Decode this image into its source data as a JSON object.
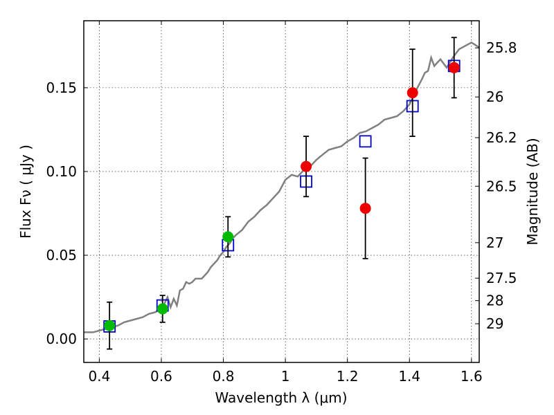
{
  "chart_data": {
    "type": "scatter",
    "xlabel": "Wavelength  λ (μm)",
    "ylabel": "Flux  Fν  ( μJy )",
    "y2label": "Magnitude (AB)",
    "xlim": [
      0.35,
      1.625
    ],
    "ylim": [
      -0.014,
      0.19
    ],
    "grid": true,
    "x_ticks": [
      0.4,
      0.6,
      0.8,
      1.0,
      1.2,
      1.4,
      1.6
    ],
    "x_tick_labels": [
      "0.4",
      "0.6",
      "0.8",
      "1",
      "1.2",
      "1.4",
      "1.6"
    ],
    "y_ticks": [
      0.0,
      0.05,
      0.1,
      0.15
    ],
    "y_tick_labels": [
      "0.00",
      "0.05",
      "0.10",
      "0.15"
    ],
    "y2_ticks": [
      {
        "label": "25.8",
        "flux": 0.1738
      },
      {
        "label": "26",
        "flux": 0.1445
      },
      {
        "label": "26.2",
        "flux": 0.1202
      },
      {
        "label": "26.5",
        "flux": 0.0912
      },
      {
        "label": "27",
        "flux": 0.0575
      },
      {
        "label": "27.5",
        "flux": 0.0363
      },
      {
        "label": "28",
        "flux": 0.0229
      },
      {
        "label": "29",
        "flux": 0.0091
      }
    ],
    "series": [
      {
        "kind": "line",
        "color": "#808080",
        "x": [
          0.35,
          0.38,
          0.4,
          0.42,
          0.44,
          0.46,
          0.48,
          0.5,
          0.52,
          0.54,
          0.56,
          0.58,
          0.6,
          0.61,
          0.62,
          0.63,
          0.64,
          0.65,
          0.66,
          0.67,
          0.68,
          0.69,
          0.7,
          0.71,
          0.72,
          0.73,
          0.74,
          0.75,
          0.76,
          0.77,
          0.78,
          0.79,
          0.8,
          0.81,
          0.82,
          0.83,
          0.84,
          0.86,
          0.88,
          0.9,
          0.92,
          0.94,
          0.96,
          0.98,
          1.0,
          1.02,
          1.04,
          1.06,
          1.08,
          1.1,
          1.12,
          1.14,
          1.16,
          1.18,
          1.2,
          1.22,
          1.24,
          1.26,
          1.28,
          1.3,
          1.32,
          1.34,
          1.36,
          1.38,
          1.4,
          1.42,
          1.44,
          1.45,
          1.46,
          1.47,
          1.48,
          1.5,
          1.52,
          1.54,
          1.56,
          1.58,
          1.6,
          1.625
        ],
        "y": [
          0.004,
          0.004,
          0.005,
          0.006,
          0.007,
          0.008,
          0.01,
          0.011,
          0.012,
          0.013,
          0.015,
          0.016,
          0.018,
          0.021,
          0.025,
          0.019,
          0.024,
          0.02,
          0.029,
          0.03,
          0.034,
          0.033,
          0.034,
          0.036,
          0.036,
          0.036,
          0.038,
          0.04,
          0.043,
          0.045,
          0.047,
          0.05,
          0.052,
          0.055,
          0.057,
          0.06,
          0.062,
          0.065,
          0.07,
          0.073,
          0.077,
          0.08,
          0.084,
          0.088,
          0.095,
          0.098,
          0.097,
          0.101,
          0.103,
          0.107,
          0.11,
          0.113,
          0.114,
          0.115,
          0.118,
          0.12,
          0.123,
          0.124,
          0.126,
          0.128,
          0.131,
          0.132,
          0.133,
          0.136,
          0.14,
          0.148,
          0.155,
          0.159,
          0.16,
          0.168,
          0.163,
          0.167,
          0.162,
          0.168,
          0.173,
          0.175,
          0.177,
          0.174
        ]
      },
      {
        "kind": "model_points",
        "marker": "open-square",
        "color": "#0000cc",
        "x": [
          0.433,
          0.604,
          0.815,
          1.067,
          1.258,
          1.41,
          1.544
        ],
        "y": [
          0.0075,
          0.02,
          0.056,
          0.094,
          0.118,
          0.139,
          0.163
        ]
      },
      {
        "kind": "observed_points",
        "marker": "circle",
        "color": "#00bb00",
        "x": [
          0.433,
          0.604,
          0.815
        ],
        "y": [
          0.008,
          0.018,
          0.061
        ],
        "yerr": [
          0.014,
          0.008,
          0.012
        ]
      },
      {
        "kind": "observed_points",
        "marker": "circle",
        "color": "#ee0000",
        "x": [
          1.067,
          1.258,
          1.41,
          1.544
        ],
        "y": [
          0.103,
          0.078,
          0.147,
          0.162
        ],
        "yerr": [
          0.018,
          0.03,
          0.026,
          0.018
        ]
      }
    ]
  }
}
